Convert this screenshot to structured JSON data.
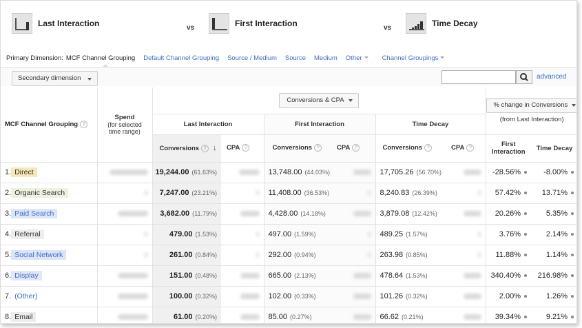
{
  "models": [
    {
      "name": "Last Interaction",
      "icon": "last-interaction-icon"
    },
    {
      "name": "First Interaction",
      "icon": "first-interaction-icon"
    },
    {
      "name": "Time Decay",
      "icon": "time-decay-icon"
    }
  ],
  "vs_label": "vs",
  "primary_dimension": {
    "label": "Primary Dimension:",
    "active": "MCF Channel Grouping",
    "links": [
      "Default Channel Grouping",
      "Source / Medium",
      "Source",
      "Medium",
      "Other",
      "Channel Groupings"
    ]
  },
  "secondary_dimension_label": "Secondary dimension",
  "search": {
    "placeholder": "",
    "advanced_label": "advanced"
  },
  "table": {
    "dimension_header": "MCF Channel Grouping",
    "spend_header": "Spend",
    "spend_sub": "(for selected time range)",
    "metric_dropdown": "Conversions & CPA",
    "pct_dropdown": "% change in Conversions",
    "pct_sub": "(from Last Interaction)",
    "groups": [
      "Last Interaction",
      "First Interaction",
      "Time Decay"
    ],
    "conv_label": "Conversions",
    "cpa_label": "CPA",
    "pct_cols": [
      "First Interaction",
      "Time Decay"
    ],
    "rows": [
      {
        "idx": "1.",
        "name": "Direct",
        "chip_bg": "#f7e8b8",
        "last": "19,244.00",
        "last_pct": "(61.63%)",
        "first": "13,748.00",
        "first_pct": "(44.03%)",
        "decay": "17,705.26",
        "decay_pct": "(56.70%)",
        "chg_first": "-28.56%",
        "chg_decay": "-8.00%"
      },
      {
        "idx": "2.",
        "name": "Organic Search",
        "chip_bg": "#eef0e0",
        "last": "7,247.00",
        "last_pct": "(23.21%)",
        "first": "11,408.00",
        "first_pct": "(36.53%)",
        "decay": "8,240.83",
        "decay_pct": "(26.39%)",
        "chg_first": "57.42%",
        "chg_decay": "13.71%"
      },
      {
        "idx": "3.",
        "name": "Paid Search",
        "chip_bg": "#dde6f8",
        "last": "3,682.00",
        "last_pct": "(11.79%)",
        "first": "4,428.00",
        "first_pct": "(14.18%)",
        "decay": "3,879.08",
        "decay_pct": "(12.42%)",
        "chg_first": "20.26%",
        "chg_decay": "5.35%"
      },
      {
        "idx": "4.",
        "name": "Referral",
        "chip_bg": "#eeeeee",
        "last": "479.00",
        "last_pct": "(1.53%)",
        "first": "497.00",
        "first_pct": "(1.59%)",
        "decay": "489.25",
        "decay_pct": "(1.57%)",
        "chg_first": "3.76%",
        "chg_decay": "2.14%"
      },
      {
        "idx": "5.",
        "name": "Social Network",
        "chip_bg": "#dde4f8",
        "last": "261.00",
        "last_pct": "(0.84%)",
        "first": "292.00",
        "first_pct": "(0.94%)",
        "decay": "263.98",
        "decay_pct": "(0.85%)",
        "chg_first": "11.88%",
        "chg_decay": "1.14%"
      },
      {
        "idx": "6.",
        "name": "Display",
        "chip_bg": "#e2e6f7",
        "last": "151.00",
        "last_pct": "(0.48%)",
        "first": "665.00",
        "first_pct": "(2.13%)",
        "decay": "478.64",
        "decay_pct": "(1.53%)",
        "chg_first": "340.40%",
        "chg_decay": "216.98%"
      },
      {
        "idx": "7.",
        "name": "(Other)",
        "chip_bg": "#ffffff",
        "last": "100.00",
        "last_pct": "(0.32%)",
        "first": "102.00",
        "first_pct": "(0.33%)",
        "decay": "101.26",
        "decay_pct": "(0.32%)",
        "chg_first": "2.00%",
        "chg_decay": "1.26%"
      },
      {
        "idx": "8.",
        "name": "Email",
        "chip_bg": "#ececec",
        "last": "61.00",
        "last_pct": "(0.20%)",
        "first": "85.00",
        "first_pct": "(0.27%)",
        "decay": "66.62",
        "decay_pct": "(0.21%)",
        "chg_first": "39.34%",
        "chg_decay": "9.21%"
      }
    ]
  },
  "colors": {
    "link": "#3c6fc7",
    "highlight_col": "#f0f0f0"
  }
}
